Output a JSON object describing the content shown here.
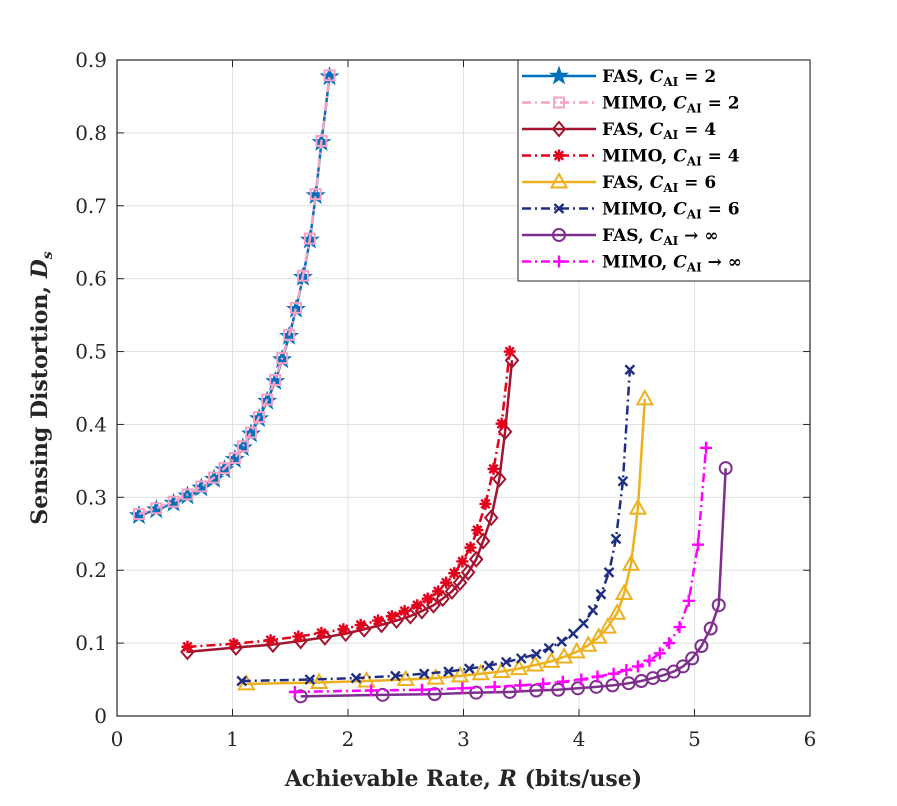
{
  "chart_data": {
    "type": "line",
    "xlabel": "Achievable Rate, R (bits/use)",
    "ylabel": "Sensing Distortion, D_s",
    "xlim": [
      0,
      6
    ],
    "ylim": [
      0,
      0.9
    ],
    "xticks": [
      "0",
      "1",
      "2",
      "3",
      "4",
      "5",
      "6"
    ],
    "yticks": [
      "0",
      "0.1",
      "0.2",
      "0.3",
      "0.4",
      "0.5",
      "0.6",
      "0.7",
      "0.8",
      "0.9"
    ],
    "grid": true,
    "legend_position": "top-right",
    "series": [
      {
        "name": "FAS, C_AI = 2",
        "label_prefix": "FAS, ",
        "label_math": "C",
        "label_sub": "AI",
        "label_suffix": " = 2",
        "color": "#0072BD",
        "marker": "star",
        "dash": "solid",
        "x": [
          0.19,
          0.34,
          0.49,
          0.61,
          0.73,
          0.84,
          0.93,
          1.02,
          1.09,
          1.16,
          1.23,
          1.3,
          1.37,
          1.43,
          1.49,
          1.55,
          1.61,
          1.67,
          1.72,
          1.77,
          1.84
        ],
        "y": [
          0.275,
          0.283,
          0.292,
          0.302,
          0.313,
          0.325,
          0.338,
          0.352,
          0.368,
          0.387,
          0.408,
          0.432,
          0.459,
          0.489,
          0.521,
          0.558,
          0.602,
          0.653,
          0.714,
          0.787,
          0.877
        ]
      },
      {
        "name": "MIMO, C_AI = 2",
        "label_prefix": "MIMO, ",
        "label_math": "C",
        "label_sub": "AI",
        "label_suffix": " = 2",
        "color": "#F8A1C4",
        "marker": "square",
        "dash": "dashdot",
        "x": [
          0.19,
          0.34,
          0.49,
          0.61,
          0.73,
          0.84,
          0.93,
          1.02,
          1.09,
          1.16,
          1.23,
          1.3,
          1.37,
          1.43,
          1.49,
          1.55,
          1.61,
          1.67,
          1.72,
          1.77,
          1.84
        ],
        "y": [
          0.277,
          0.285,
          0.294,
          0.304,
          0.315,
          0.327,
          0.34,
          0.354,
          0.37,
          0.389,
          0.41,
          0.434,
          0.461,
          0.491,
          0.523,
          0.56,
          0.604,
          0.655,
          0.716,
          0.789,
          0.879
        ]
      },
      {
        "name": "FAS, C_AI = 4",
        "label_prefix": "FAS, ",
        "label_math": "C",
        "label_sub": "AI",
        "label_suffix": " = 4",
        "color": "#A2142F",
        "marker": "diamond",
        "dash": "solid",
        "x": [
          0.61,
          1.03,
          1.35,
          1.59,
          1.8,
          1.98,
          2.14,
          2.29,
          2.42,
          2.54,
          2.64,
          2.74,
          2.82,
          2.9,
          2.97,
          3.04,
          3.11,
          3.17,
          3.24,
          3.31,
          3.36,
          3.42
        ],
        "y": [
          0.088,
          0.094,
          0.098,
          0.103,
          0.108,
          0.113,
          0.119,
          0.125,
          0.131,
          0.137,
          0.144,
          0.152,
          0.161,
          0.171,
          0.183,
          0.197,
          0.215,
          0.24,
          0.272,
          0.325,
          0.39,
          0.488
        ]
      },
      {
        "name": "MIMO, C_AI = 4",
        "label_prefix": "MIMO, ",
        "label_math": "C",
        "label_sub": "AI",
        "label_suffix": " = 4",
        "color": "#E3001B",
        "marker": "asterisk",
        "dash": "dashdot",
        "x": [
          0.61,
          1.01,
          1.33,
          1.57,
          1.77,
          1.96,
          2.11,
          2.26,
          2.38,
          2.49,
          2.6,
          2.69,
          2.78,
          2.85,
          2.92,
          2.99,
          3.06,
          3.12,
          3.19,
          3.26,
          3.33,
          3.4
        ],
        "y": [
          0.095,
          0.099,
          0.104,
          0.109,
          0.114,
          0.119,
          0.125,
          0.131,
          0.137,
          0.144,
          0.152,
          0.161,
          0.171,
          0.183,
          0.196,
          0.212,
          0.231,
          0.255,
          0.291,
          0.339,
          0.401,
          0.5
        ]
      },
      {
        "name": "FAS, C_AI = 6",
        "label_prefix": "FAS, ",
        "label_math": "C",
        "label_sub": "AI",
        "label_suffix": " = 6",
        "color": "#EDB120",
        "marker": "triangle",
        "dash": "solid",
        "x": [
          1.12,
          1.75,
          2.16,
          2.5,
          2.76,
          2.97,
          3.15,
          3.33,
          3.48,
          3.62,
          3.76,
          3.87,
          3.98,
          4.08,
          4.17,
          4.25,
          4.33,
          4.39,
          4.45,
          4.51,
          4.57
        ],
        "y": [
          0.044,
          0.046,
          0.048,
          0.05,
          0.052,
          0.055,
          0.058,
          0.061,
          0.065,
          0.07,
          0.075,
          0.081,
          0.088,
          0.097,
          0.108,
          0.122,
          0.141,
          0.168,
          0.208,
          0.285,
          0.435
        ]
      },
      {
        "name": "MIMO, C_AI = 6",
        "label_prefix": "MIMO, ",
        "label_math": "C",
        "label_sub": "AI",
        "label_suffix": " = 6",
        "color": "#1F2E82",
        "marker": "cross",
        "dash": "dashdot",
        "x": [
          1.08,
          1.67,
          2.07,
          2.41,
          2.66,
          2.87,
          3.05,
          3.22,
          3.37,
          3.5,
          3.63,
          3.74,
          3.85,
          3.95,
          4.04,
          4.12,
          4.19,
          4.26,
          4.32,
          4.38,
          4.44
        ],
        "y": [
          0.048,
          0.05,
          0.052,
          0.055,
          0.058,
          0.061,
          0.065,
          0.069,
          0.074,
          0.079,
          0.085,
          0.093,
          0.102,
          0.113,
          0.127,
          0.145,
          0.167,
          0.197,
          0.243,
          0.322,
          0.475
        ]
      },
      {
        "name": "FAS, C_AI → ∞",
        "label_prefix": "FAS, ",
        "label_math": "C",
        "label_sub": "AI",
        "label_suffix": " → ∞",
        "color": "#7E2F8E",
        "marker": "circle",
        "dash": "solid",
        "x": [
          1.59,
          2.3,
          2.75,
          3.11,
          3.4,
          3.63,
          3.82,
          3.99,
          4.15,
          4.29,
          4.43,
          4.54,
          4.64,
          4.73,
          4.82,
          4.9,
          4.98,
          5.06,
          5.14,
          5.21,
          5.27
        ],
        "y": [
          0.027,
          0.029,
          0.03,
          0.032,
          0.033,
          0.035,
          0.036,
          0.038,
          0.04,
          0.042,
          0.045,
          0.048,
          0.052,
          0.056,
          0.061,
          0.068,
          0.079,
          0.096,
          0.12,
          0.152,
          0.34
        ]
      },
      {
        "name": "MIMO, C_AI → ∞",
        "label_prefix": "MIMO, ",
        "label_math": "C",
        "label_sub": "AI",
        "label_suffix": " → ∞",
        "color": "#FF00FF",
        "marker": "plus",
        "dash": "dashdot",
        "x": [
          1.54,
          2.2,
          2.64,
          2.99,
          3.27,
          3.49,
          3.69,
          3.86,
          4.02,
          4.16,
          4.3,
          4.41,
          4.51,
          4.61,
          4.7,
          4.78,
          4.87,
          4.95,
          5.03,
          5.1
        ],
        "y": [
          0.033,
          0.035,
          0.036,
          0.038,
          0.04,
          0.042,
          0.044,
          0.047,
          0.05,
          0.054,
          0.058,
          0.063,
          0.068,
          0.076,
          0.086,
          0.1,
          0.122,
          0.158,
          0.235,
          0.368
        ]
      }
    ]
  },
  "axis_titles": {
    "x_text": "Achievable Rate, ",
    "x_math": "R",
    "x_unit": " (bits/use)",
    "y_text": "Sensing Distortion, ",
    "y_math": "D",
    "y_sub": "s"
  }
}
